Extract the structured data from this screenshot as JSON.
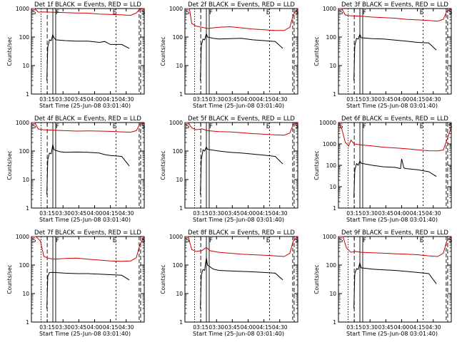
{
  "figure": {
    "time_axis_label": "Start Time (25-Jun-08 03:01:40)",
    "y_axis_label": "Counts/sec",
    "x_tick_labels": [
      "03:15",
      "03:30",
      "03:45",
      "04:00",
      "04:15",
      "04:30"
    ],
    "marker_labels": [
      "S",
      "F",
      "E",
      "S"
    ],
    "colors": {
      "events": "#000000",
      "lld": "#cc0000",
      "frame": "#000000"
    }
  },
  "chart_data": [
    {
      "type": "line",
      "title": "Det 1f BLACK = Events, RED = LLD",
      "xlabel": "Start Time (25-Jun-08 03:01:40)",
      "ylabel": "Counts/sec",
      "y_scale": "log",
      "ylim": [
        1,
        1000
      ],
      "x_ticks": [
        "03:15",
        "03:30",
        "03:45",
        "04:00",
        "04:15",
        "04:30"
      ],
      "y_tick_labels": [
        "1",
        "10",
        "100",
        "1000"
      ],
      "events": [
        [
          0.137,
          3
        ],
        [
          0.145,
          45
        ],
        [
          0.16,
          80
        ],
        [
          0.175,
          75
        ],
        [
          0.19,
          120
        ],
        [
          0.2,
          95
        ],
        [
          0.215,
          80
        ],
        [
          0.3,
          75
        ],
        [
          0.4,
          72
        ],
        [
          0.5,
          72
        ],
        [
          0.6,
          65
        ],
        [
          0.65,
          70
        ],
        [
          0.7,
          55
        ],
        [
          0.8,
          55
        ],
        [
          0.868,
          40
        ]
      ],
      "lld": [
        [
          0.0,
          1000
        ],
        [
          0.03,
          1000
        ],
        [
          0.06,
          750
        ],
        [
          0.1,
          760
        ],
        [
          0.2,
          740
        ],
        [
          0.3,
          720
        ],
        [
          0.4,
          700
        ],
        [
          0.5,
          690
        ],
        [
          0.6,
          640
        ],
        [
          0.7,
          620
        ],
        [
          0.8,
          600
        ],
        [
          0.88,
          580
        ],
        [
          0.93,
          700
        ],
        [
          0.96,
          950
        ],
        [
          1.0,
          1000
        ]
      ]
    },
    {
      "type": "line",
      "title": "Det 2f BLACK = Events, RED = LLD",
      "xlabel": "Start Time (25-Jun-08 03:01:40)",
      "ylabel": "Counts/sec",
      "y_scale": "log",
      "ylim": [
        1,
        1000
      ],
      "x_ticks": [
        "03:15",
        "03:30",
        "03:45",
        "04:00",
        "04:15",
        "04:30"
      ],
      "y_tick_labels": [
        "1",
        "10",
        "100",
        "1000"
      ],
      "events": [
        [
          0.137,
          3
        ],
        [
          0.145,
          50
        ],
        [
          0.16,
          85
        ],
        [
          0.175,
          80
        ],
        [
          0.19,
          130
        ],
        [
          0.2,
          100
        ],
        [
          0.25,
          90
        ],
        [
          0.3,
          85
        ],
        [
          0.4,
          88
        ],
        [
          0.5,
          90
        ],
        [
          0.6,
          80
        ],
        [
          0.7,
          75
        ],
        [
          0.8,
          70
        ],
        [
          0.868,
          40
        ]
      ],
      "lld": [
        [
          0.0,
          1000
        ],
        [
          0.04,
          1000
        ],
        [
          0.06,
          300
        ],
        [
          0.1,
          240
        ],
        [
          0.15,
          220
        ],
        [
          0.2,
          200
        ],
        [
          0.3,
          220
        ],
        [
          0.4,
          230
        ],
        [
          0.5,
          210
        ],
        [
          0.6,
          190
        ],
        [
          0.7,
          180
        ],
        [
          0.8,
          170
        ],
        [
          0.88,
          170
        ],
        [
          0.93,
          220
        ],
        [
          0.96,
          600
        ],
        [
          1.0,
          1000
        ]
      ]
    },
    {
      "type": "line",
      "title": "Det 3f BLACK = Events, RED = LLD",
      "xlabel": "Start Time (25-Jun-08 03:01:40)",
      "ylabel": "Counts/sec",
      "y_scale": "log",
      "ylim": [
        1,
        1000
      ],
      "x_ticks": [
        "03:15",
        "03:30",
        "03:45",
        "04:00",
        "04:15",
        "04:30"
      ],
      "y_tick_labels": [
        "1",
        "10",
        "100",
        "1000"
      ],
      "events": [
        [
          0.137,
          3
        ],
        [
          0.145,
          50
        ],
        [
          0.16,
          90
        ],
        [
          0.175,
          85
        ],
        [
          0.19,
          125
        ],
        [
          0.2,
          95
        ],
        [
          0.3,
          88
        ],
        [
          0.4,
          85
        ],
        [
          0.5,
          78
        ],
        [
          0.6,
          72
        ],
        [
          0.7,
          65
        ],
        [
          0.8,
          62
        ],
        [
          0.868,
          35
        ]
      ],
      "lld": [
        [
          0.0,
          1000
        ],
        [
          0.03,
          1000
        ],
        [
          0.06,
          600
        ],
        [
          0.1,
          560
        ],
        [
          0.2,
          540
        ],
        [
          0.3,
          500
        ],
        [
          0.4,
          480
        ],
        [
          0.5,
          460
        ],
        [
          0.6,
          420
        ],
        [
          0.7,
          400
        ],
        [
          0.8,
          380
        ],
        [
          0.88,
          360
        ],
        [
          0.93,
          420
        ],
        [
          0.96,
          800
        ],
        [
          1.0,
          1000
        ]
      ]
    },
    {
      "type": "line",
      "title": "Det 4f BLACK = Events, RED = LLD",
      "xlabel": "Start Time (25-Jun-08 03:01:40)",
      "ylabel": "Counts/sec",
      "y_scale": "log",
      "ylim": [
        1,
        1000
      ],
      "x_ticks": [
        "03:15",
        "03:30",
        "03:45",
        "04:00",
        "04:15",
        "04:30"
      ],
      "y_tick_labels": [
        "1",
        "10",
        "100",
        "1000"
      ],
      "events": [
        [
          0.137,
          3
        ],
        [
          0.145,
          50
        ],
        [
          0.16,
          85
        ],
        [
          0.175,
          80
        ],
        [
          0.19,
          170
        ],
        [
          0.2,
          110
        ],
        [
          0.25,
          95
        ],
        [
          0.3,
          90
        ],
        [
          0.4,
          92
        ],
        [
          0.5,
          90
        ],
        [
          0.6,
          85
        ],
        [
          0.65,
          75
        ],
        [
          0.7,
          70
        ],
        [
          0.8,
          65
        ],
        [
          0.868,
          30
        ]
      ],
      "lld": [
        [
          0.0,
          1000
        ],
        [
          0.03,
          1000
        ],
        [
          0.06,
          600
        ],
        [
          0.1,
          560
        ],
        [
          0.2,
          540
        ],
        [
          0.3,
          520
        ],
        [
          0.4,
          500
        ],
        [
          0.5,
          510
        ],
        [
          0.6,
          500
        ],
        [
          0.7,
          490
        ],
        [
          0.8,
          470
        ],
        [
          0.88,
          460
        ],
        [
          0.93,
          520
        ],
        [
          0.96,
          850
        ],
        [
          1.0,
          1000
        ]
      ]
    },
    {
      "type": "line",
      "title": "Det 5f BLACK = Events, RED = LLD",
      "xlabel": "Start Time (25-Jun-08 03:01:40)",
      "ylabel": "Counts/sec",
      "y_scale": "log",
      "ylim": [
        1,
        1000
      ],
      "x_ticks": [
        "03:15",
        "03:30",
        "03:45",
        "04:00",
        "04:15",
        "04:30"
      ],
      "y_tick_labels": [
        "1",
        "10",
        "100",
        "1000"
      ],
      "events": [
        [
          0.137,
          3
        ],
        [
          0.145,
          50
        ],
        [
          0.16,
          110
        ],
        [
          0.175,
          100
        ],
        [
          0.19,
          140
        ],
        [
          0.2,
          115
        ],
        [
          0.3,
          100
        ],
        [
          0.4,
          90
        ],
        [
          0.5,
          85
        ],
        [
          0.6,
          78
        ],
        [
          0.7,
          72
        ],
        [
          0.8,
          65
        ],
        [
          0.868,
          35
        ]
      ],
      "lld": [
        [
          0.0,
          1000
        ],
        [
          0.03,
          1000
        ],
        [
          0.06,
          650
        ],
        [
          0.1,
          560
        ],
        [
          0.15,
          600
        ],
        [
          0.2,
          520
        ],
        [
          0.3,
          480
        ],
        [
          0.4,
          470
        ],
        [
          0.5,
          440
        ],
        [
          0.6,
          410
        ],
        [
          0.7,
          390
        ],
        [
          0.8,
          370
        ],
        [
          0.88,
          360
        ],
        [
          0.93,
          430
        ],
        [
          0.96,
          850
        ],
        [
          1.0,
          1000
        ]
      ]
    },
    {
      "type": "line",
      "title": "Det 6f BLACK = Events, RED = LLD",
      "xlabel": "Start Time (25-Jun-08 03:01:40)",
      "ylabel": "Counts/sec",
      "y_scale": "log",
      "ylim": [
        1,
        10000
      ],
      "x_ticks": [
        "03:15",
        "03:30",
        "03:45",
        "04:00",
        "04:15",
        "04:30"
      ],
      "y_tick_labels": [
        "1",
        "10",
        "100",
        "1000",
        "10000"
      ],
      "events": [
        [
          0.137,
          3
        ],
        [
          0.145,
          60
        ],
        [
          0.16,
          120
        ],
        [
          0.175,
          100
        ],
        [
          0.19,
          160
        ],
        [
          0.2,
          125
        ],
        [
          0.3,
          100
        ],
        [
          0.4,
          85
        ],
        [
          0.5,
          80
        ],
        [
          0.55,
          70
        ],
        [
          0.56,
          200
        ],
        [
          0.58,
          75
        ],
        [
          0.6,
          70
        ],
        [
          0.7,
          62
        ],
        [
          0.8,
          50
        ],
        [
          0.868,
          30
        ]
      ],
      "lld": [
        [
          0.0,
          10000
        ],
        [
          0.03,
          5000
        ],
        [
          0.06,
          1200
        ],
        [
          0.09,
          800
        ],
        [
          0.11,
          1500
        ],
        [
          0.14,
          1000
        ],
        [
          0.2,
          900
        ],
        [
          0.3,
          800
        ],
        [
          0.4,
          700
        ],
        [
          0.5,
          650
        ],
        [
          0.6,
          600
        ],
        [
          0.7,
          530
        ],
        [
          0.8,
          480
        ],
        [
          0.88,
          470
        ],
        [
          0.93,
          520
        ],
        [
          0.96,
          1500
        ],
        [
          1.0,
          6000
        ]
      ]
    },
    {
      "type": "line",
      "title": "Det 7f BLACK = Events, RED = LLD",
      "xlabel": "Start Time (25-Jun-08 03:01:40)",
      "ylabel": "Counts/sec",
      "y_scale": "log",
      "ylim": [
        1,
        1000
      ],
      "x_ticks": [
        "03:15",
        "03:30",
        "03:45",
        "04:00",
        "04:15",
        "04:30"
      ],
      "y_tick_labels": [
        "1",
        "10",
        "100",
        "1000"
      ],
      "events": [
        [
          0.137,
          3
        ],
        [
          0.145,
          40
        ],
        [
          0.16,
          55
        ],
        [
          0.2,
          55
        ],
        [
          0.3,
          52
        ],
        [
          0.4,
          50
        ],
        [
          0.5,
          50
        ],
        [
          0.6,
          48
        ],
        [
          0.7,
          46
        ],
        [
          0.8,
          44
        ],
        [
          0.868,
          30
        ]
      ],
      "lld": [
        [
          0.0,
          1000
        ],
        [
          0.04,
          1000
        ],
        [
          0.08,
          700
        ],
        [
          0.11,
          200
        ],
        [
          0.16,
          170
        ],
        [
          0.2,
          160
        ],
        [
          0.3,
          170
        ],
        [
          0.4,
          175
        ],
        [
          0.5,
          160
        ],
        [
          0.6,
          150
        ],
        [
          0.7,
          140
        ],
        [
          0.8,
          135
        ],
        [
          0.88,
          140
        ],
        [
          0.93,
          180
        ],
        [
          0.96,
          500
        ],
        [
          1.0,
          1000
        ]
      ]
    },
    {
      "type": "line",
      "title": "Det 8f BLACK = Events, RED = LLD",
      "xlabel": "Start Time (25-Jun-08 03:01:40)",
      "ylabel": "Counts/sec",
      "y_scale": "log",
      "ylim": [
        1,
        1000
      ],
      "x_ticks": [
        "03:15",
        "03:30",
        "03:45",
        "04:00",
        "04:15",
        "04:30"
      ],
      "y_tick_labels": [
        "1",
        "10",
        "100",
        "1000"
      ],
      "events": [
        [
          0.137,
          3
        ],
        [
          0.145,
          45
        ],
        [
          0.16,
          70
        ],
        [
          0.175,
          65
        ],
        [
          0.19,
          180
        ],
        [
          0.2,
          100
        ],
        [
          0.25,
          72
        ],
        [
          0.3,
          65
        ],
        [
          0.4,
          62
        ],
        [
          0.5,
          60
        ],
        [
          0.6,
          58
        ],
        [
          0.7,
          55
        ],
        [
          0.8,
          52
        ],
        [
          0.868,
          30
        ]
      ],
      "lld": [
        [
          0.0,
          1000
        ],
        [
          0.03,
          1000
        ],
        [
          0.06,
          350
        ],
        [
          0.1,
          300
        ],
        [
          0.15,
          320
        ],
        [
          0.19,
          420
        ],
        [
          0.22,
          320
        ],
        [
          0.3,
          280
        ],
        [
          0.4,
          260
        ],
        [
          0.5,
          240
        ],
        [
          0.6,
          230
        ],
        [
          0.7,
          220
        ],
        [
          0.8,
          210
        ],
        [
          0.88,
          200
        ],
        [
          0.93,
          260
        ],
        [
          0.96,
          700
        ],
        [
          1.0,
          1000
        ]
      ]
    },
    {
      "type": "line",
      "title": "Det 9f BLACK = Events, RED = LLD",
      "xlabel": "Start Time (25-Jun-08 03:01:40)",
      "ylabel": "Counts/sec",
      "y_scale": "log",
      "ylim": [
        1,
        1000
      ],
      "x_ticks": [
        "03:15",
        "03:30",
        "03:45",
        "04:00",
        "04:15",
        "04:30"
      ],
      "y_tick_labels": [
        "1",
        "10",
        "100",
        "1000"
      ],
      "events": [
        [
          0.137,
          3
        ],
        [
          0.145,
          50
        ],
        [
          0.16,
          75
        ],
        [
          0.175,
          70
        ],
        [
          0.19,
          120
        ],
        [
          0.2,
          80
        ],
        [
          0.3,
          72
        ],
        [
          0.4,
          68
        ],
        [
          0.5,
          65
        ],
        [
          0.6,
          60
        ],
        [
          0.7,
          55
        ],
        [
          0.8,
          50
        ],
        [
          0.868,
          22
        ]
      ],
      "lld": [
        [
          0.0,
          1000
        ],
        [
          0.04,
          1000
        ],
        [
          0.07,
          400
        ],
        [
          0.11,
          280
        ],
        [
          0.15,
          300
        ],
        [
          0.2,
          280
        ],
        [
          0.3,
          270
        ],
        [
          0.4,
          260
        ],
        [
          0.5,
          250
        ],
        [
          0.6,
          240
        ],
        [
          0.7,
          230
        ],
        [
          0.8,
          210
        ],
        [
          0.88,
          200
        ],
        [
          0.93,
          260
        ],
        [
          0.96,
          700
        ],
        [
          1.0,
          1000
        ]
      ]
    }
  ]
}
